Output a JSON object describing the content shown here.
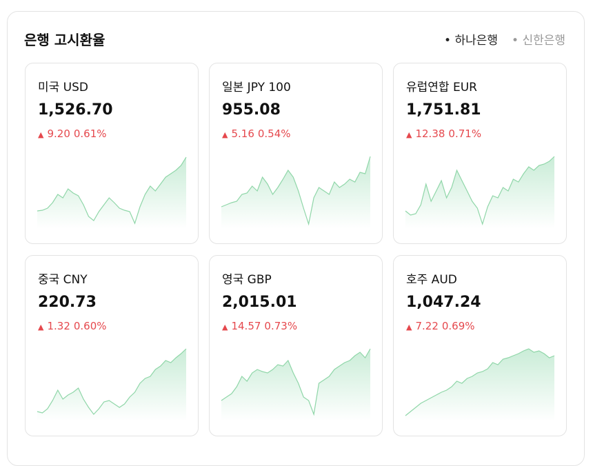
{
  "header": {
    "title": "은행 고시환율",
    "tabs": [
      "하나은행",
      "신한은행"
    ]
  },
  "cards": [
    {
      "name": "미국 USD",
      "rate": "1,526.70",
      "change": "9.20",
      "percent": "0.61%",
      "spark": [
        26,
        27,
        30,
        38,
        50,
        45,
        58,
        52,
        48,
        35,
        18,
        12,
        25,
        35,
        45,
        38,
        30,
        27,
        25,
        8,
        32,
        50,
        62,
        55,
        65,
        75,
        80,
        85,
        92,
        104
      ]
    },
    {
      "name": "일본 JPY 100",
      "rate": "955.08",
      "change": "5.16",
      "percent": "0.54%",
      "spark": [
        32,
        35,
        38,
        40,
        50,
        52,
        62,
        55,
        75,
        65,
        50,
        60,
        72,
        85,
        75,
        55,
        30,
        7,
        45,
        60,
        55,
        50,
        68,
        60,
        65,
        72,
        68,
        82,
        80,
        105
      ]
    },
    {
      "name": "유럽연합 EUR",
      "rate": "1,751.81",
      "change": "12.38",
      "percent": "0.71%",
      "spark": [
        26,
        20,
        22,
        35,
        65,
        40,
        55,
        70,
        45,
        60,
        85,
        70,
        55,
        40,
        30,
        7,
        32,
        48,
        45,
        60,
        55,
        72,
        68,
        80,
        90,
        85,
        92,
        94,
        98,
        105
      ]
    },
    {
      "name": "중국 CNY",
      "rate": "220.73",
      "change": "1.32",
      "percent": "0.60%",
      "spark": [
        14,
        12,
        18,
        30,
        45,
        32,
        38,
        42,
        48,
        32,
        20,
        10,
        18,
        28,
        30,
        25,
        20,
        25,
        35,
        42,
        55,
        62,
        65,
        75,
        80,
        88,
        85,
        92,
        98,
        105
      ]
    },
    {
      "name": "영국 GBP",
      "rate": "2,015.01",
      "change": "14.57",
      "percent": "0.73%",
      "spark": [
        30,
        35,
        40,
        50,
        65,
        58,
        70,
        75,
        72,
        70,
        75,
        82,
        80,
        88,
        70,
        55,
        35,
        30,
        10,
        55,
        60,
        65,
        75,
        80,
        85,
        88,
        95,
        100,
        92,
        105
      ]
    },
    {
      "name": "호주 AUD",
      "rate": "1,047.24",
      "change": "7.22",
      "percent": "0.69%",
      "spark": [
        8,
        14,
        20,
        26,
        30,
        34,
        38,
        42,
        45,
        50,
        58,
        55,
        62,
        65,
        70,
        72,
        76,
        85,
        82,
        90,
        92,
        95,
        98,
        102,
        105,
        100,
        102,
        98,
        92,
        95
      ]
    }
  ]
}
